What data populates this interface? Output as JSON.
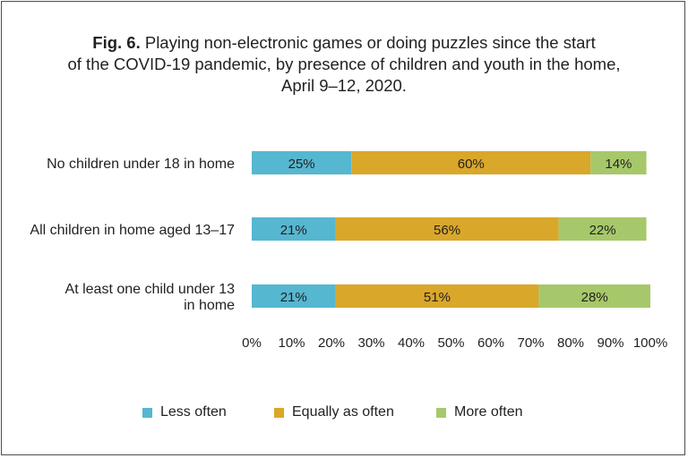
{
  "title": {
    "prefix": "Fig. 6.",
    "line1": "Playing non-electronic games or doing puzzles since the start",
    "line2": "of the COVID-19 pandemic, by presence of children and youth in the home,",
    "line3": "April 9–12, 2020."
  },
  "colors": {
    "less_often": "#56b7d0",
    "equally_as_often": "#d9a72a",
    "more_often": "#a6c86a"
  },
  "chart_data": {
    "type": "bar",
    "orientation": "horizontal",
    "stacked": true,
    "title": "Fig. 6. Playing non-electronic games or doing puzzles since the start of the COVID-19 pandemic, by presence of children and youth in the home, April 9–12, 2020.",
    "categories": [
      [
        "No children under 18 in home"
      ],
      [
        "All children in home aged 13–17"
      ],
      [
        "At least one child under 13",
        "in home"
      ]
    ],
    "series": [
      {
        "name": "Less often",
        "values": [
          25,
          21,
          21
        ],
        "labels": [
          "25%",
          "21%",
          "21%"
        ]
      },
      {
        "name": "Equally as often",
        "values": [
          60,
          56,
          51
        ],
        "labels": [
          "60%",
          "56%",
          "51%"
        ]
      },
      {
        "name": "More often",
        "values": [
          14,
          22,
          28
        ],
        "labels": [
          "14%",
          "22%",
          "28%"
        ]
      }
    ],
    "xlim": [
      0,
      100
    ],
    "xticks": [
      "0%",
      "10%",
      "20%",
      "30%",
      "40%",
      "50%",
      "60%",
      "70%",
      "80%",
      "90%",
      "100%"
    ],
    "grid": false,
    "legend_position": "bottom"
  }
}
